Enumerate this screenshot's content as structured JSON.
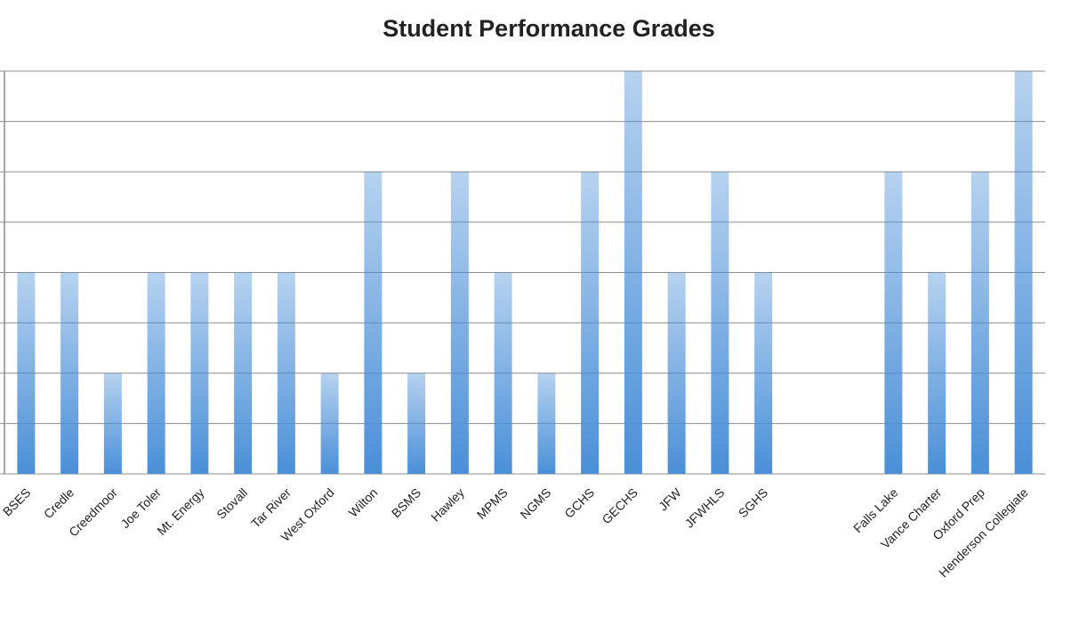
{
  "chart_data": {
    "type": "bar",
    "title": "Student Performance Grades",
    "categories": [
      "BSES",
      "Credle",
      "Creedmoor",
      "Joe Toler",
      "Mt. Energy",
      "Stovall",
      "Tar River",
      "West Oxford",
      "Wilton",
      "BSMS",
      "Hawley",
      "MPMS",
      "NGMS",
      "GCHS",
      "GECHS",
      "JFW",
      "JFWHLS",
      "SGHS",
      null,
      null,
      "Falls Lake",
      "Vance Charter",
      "Oxford Prep",
      "Henderson Collegiate"
    ],
    "values": [
      4,
      4,
      2,
      4,
      4,
      4,
      4,
      2,
      6,
      2,
      6,
      4,
      2,
      6,
      8,
      4,
      6,
      4,
      null,
      null,
      6,
      4,
      6,
      8
    ],
    "color": "#4a8fd8",
    "ylim": [
      0,
      8
    ],
    "yticks": [
      0,
      1,
      2,
      3,
      4,
      5,
      6,
      7,
      8
    ],
    "grid": true
  }
}
